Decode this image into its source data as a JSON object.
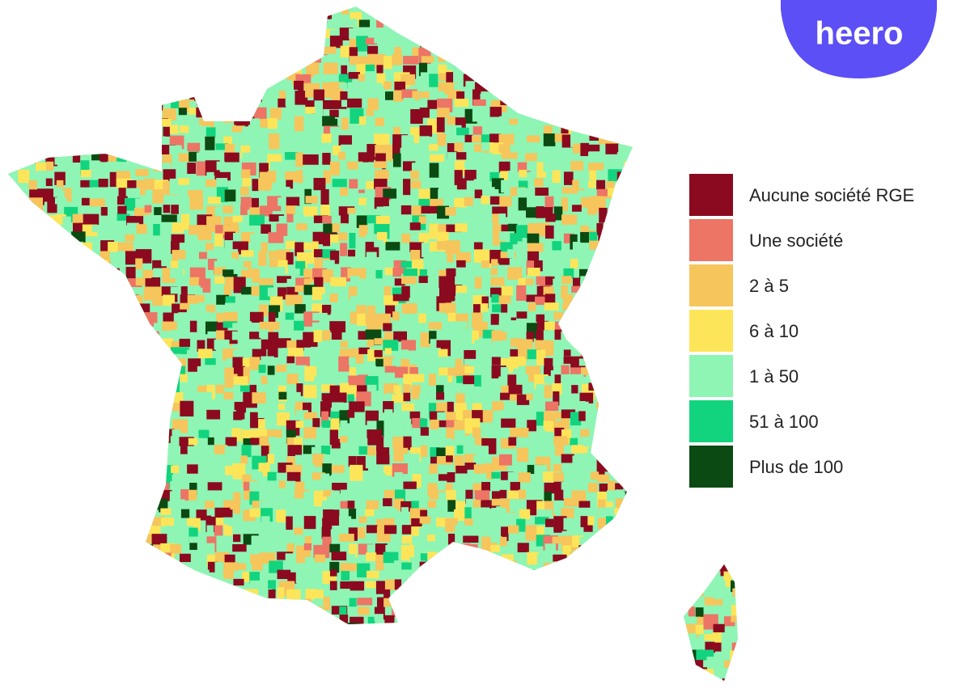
{
  "logo": "heero",
  "legend": [
    {
      "label": "Aucune société RGE",
      "color": "#8b0a1f"
    },
    {
      "label": "Une société",
      "color": "#ec7565"
    },
    {
      "label": "2 à 5",
      "color": "#f6c55c"
    },
    {
      "label": "6 à 10",
      "color": "#fde55a"
    },
    {
      "label": "1 à 50",
      "color": "#8ef5b4"
    },
    {
      "label": "51 à 100",
      "color": "#12d47e"
    },
    {
      "label": "Plus de 100",
      "color": "#0b4a12"
    }
  ]
}
